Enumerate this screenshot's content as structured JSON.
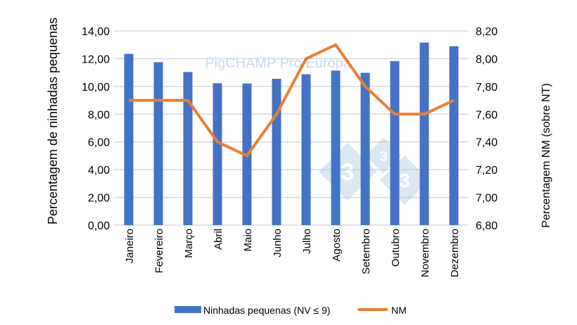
{
  "chart_data": {
    "type": "bar+line",
    "categories": [
      "Janeiro",
      "Fevereiro",
      "Março",
      "Abril",
      "Maio",
      "Junho",
      "Julho",
      "Agosto",
      "Setembro",
      "Outubro",
      "Novembro",
      "Dezembro"
    ],
    "series": [
      {
        "name": "Ninhadas pequenas (NV ≤ 9)",
        "type": "bar",
        "axis": "left",
        "color": "#4472C4",
        "values": [
          12.35,
          11.75,
          11.04,
          10.23,
          10.21,
          10.55,
          10.88,
          11.14,
          10.98,
          11.83,
          13.16,
          12.9
        ]
      },
      {
        "name": "NM",
        "type": "line",
        "axis": "right",
        "color": "#ED7D31",
        "values": [
          7.7,
          7.7,
          7.7,
          7.4,
          7.3,
          7.6,
          8.0,
          8.1,
          7.8,
          7.6,
          7.6,
          7.7
        ]
      }
    ],
    "ylabel": "Percentagem de ninhadas pequenas",
    "ylabel_right": "Percentagem NM (sobre NT)",
    "ylim": [
      0,
      14
    ],
    "ylim_right": [
      6.8,
      8.2
    ],
    "yticks": [
      "0,00",
      "2,00",
      "4,00",
      "6,00",
      "8,00",
      "10,00",
      "12,00",
      "14,00"
    ],
    "yticks_right": [
      "6,80",
      "7,00",
      "7,20",
      "7,40",
      "7,60",
      "7,80",
      "8,00",
      "8,20"
    ],
    "grid": true,
    "legend_position": "bottom",
    "watermark": "PigCHAMP Pro Europa"
  }
}
